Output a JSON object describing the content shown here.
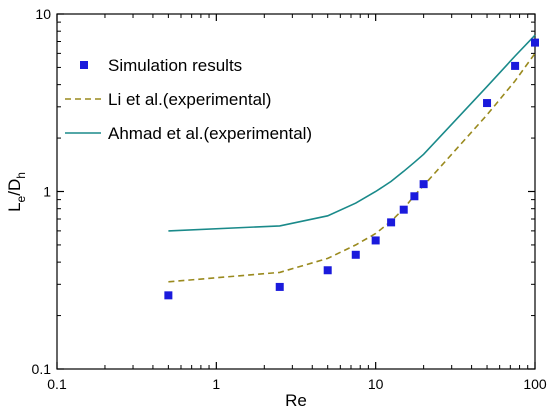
{
  "chart_data": {
    "type": "scatter",
    "xscale": "log",
    "yscale": "log",
    "xlim": [
      0.1,
      100
    ],
    "ylim": [
      0.1,
      10
    ],
    "xlabel": "Re",
    "ylabel": {
      "main": "L",
      "sub1": "e",
      "mid": "/D",
      "sub2": "h"
    },
    "x_ticks": [
      {
        "value": 0.1,
        "label": "0.1"
      },
      {
        "value": 1,
        "label": "1"
      },
      {
        "value": 10,
        "label": "10"
      },
      {
        "value": 100,
        "label": "100"
      }
    ],
    "y_ticks": [
      {
        "value": 0.1,
        "label": "0.1"
      },
      {
        "value": 1,
        "label": "1"
      },
      {
        "value": 10,
        "label": "10"
      }
    ],
    "grid": false,
    "legend_position": "top-left",
    "series": [
      {
        "name": "Simulation results",
        "kind": "markers",
        "marker": "square",
        "color": "#1a1adc",
        "x": [
          0.5,
          2.5,
          5,
          7.5,
          10,
          12.5,
          15,
          17.5,
          20,
          50,
          75,
          100
        ],
        "y": [
          0.26,
          0.29,
          0.36,
          0.44,
          0.53,
          0.67,
          0.79,
          0.94,
          1.1,
          3.15,
          5.1,
          6.9
        ]
      },
      {
        "name": "Li et al.(experimental)",
        "kind": "line",
        "dash": "dashed",
        "color": "#9a8a1e",
        "x": [
          0.5,
          2.5,
          5,
          7.5,
          10,
          12.5,
          15,
          17.5,
          20,
          50,
          75,
          100
        ],
        "y": [
          0.31,
          0.35,
          0.42,
          0.5,
          0.58,
          0.68,
          0.8,
          0.95,
          1.08,
          2.7,
          4.2,
          6.0
        ]
      },
      {
        "name": "Ahmad et al.(experimental)",
        "kind": "line",
        "dash": "solid",
        "color": "#1a8a8a",
        "x": [
          0.5,
          2.5,
          5,
          7.5,
          10,
          12.5,
          15,
          17.5,
          20,
          50,
          75,
          100
        ],
        "y": [
          0.6,
          0.64,
          0.73,
          0.86,
          1.0,
          1.14,
          1.3,
          1.46,
          1.62,
          3.9,
          5.8,
          7.6
        ]
      }
    ]
  }
}
